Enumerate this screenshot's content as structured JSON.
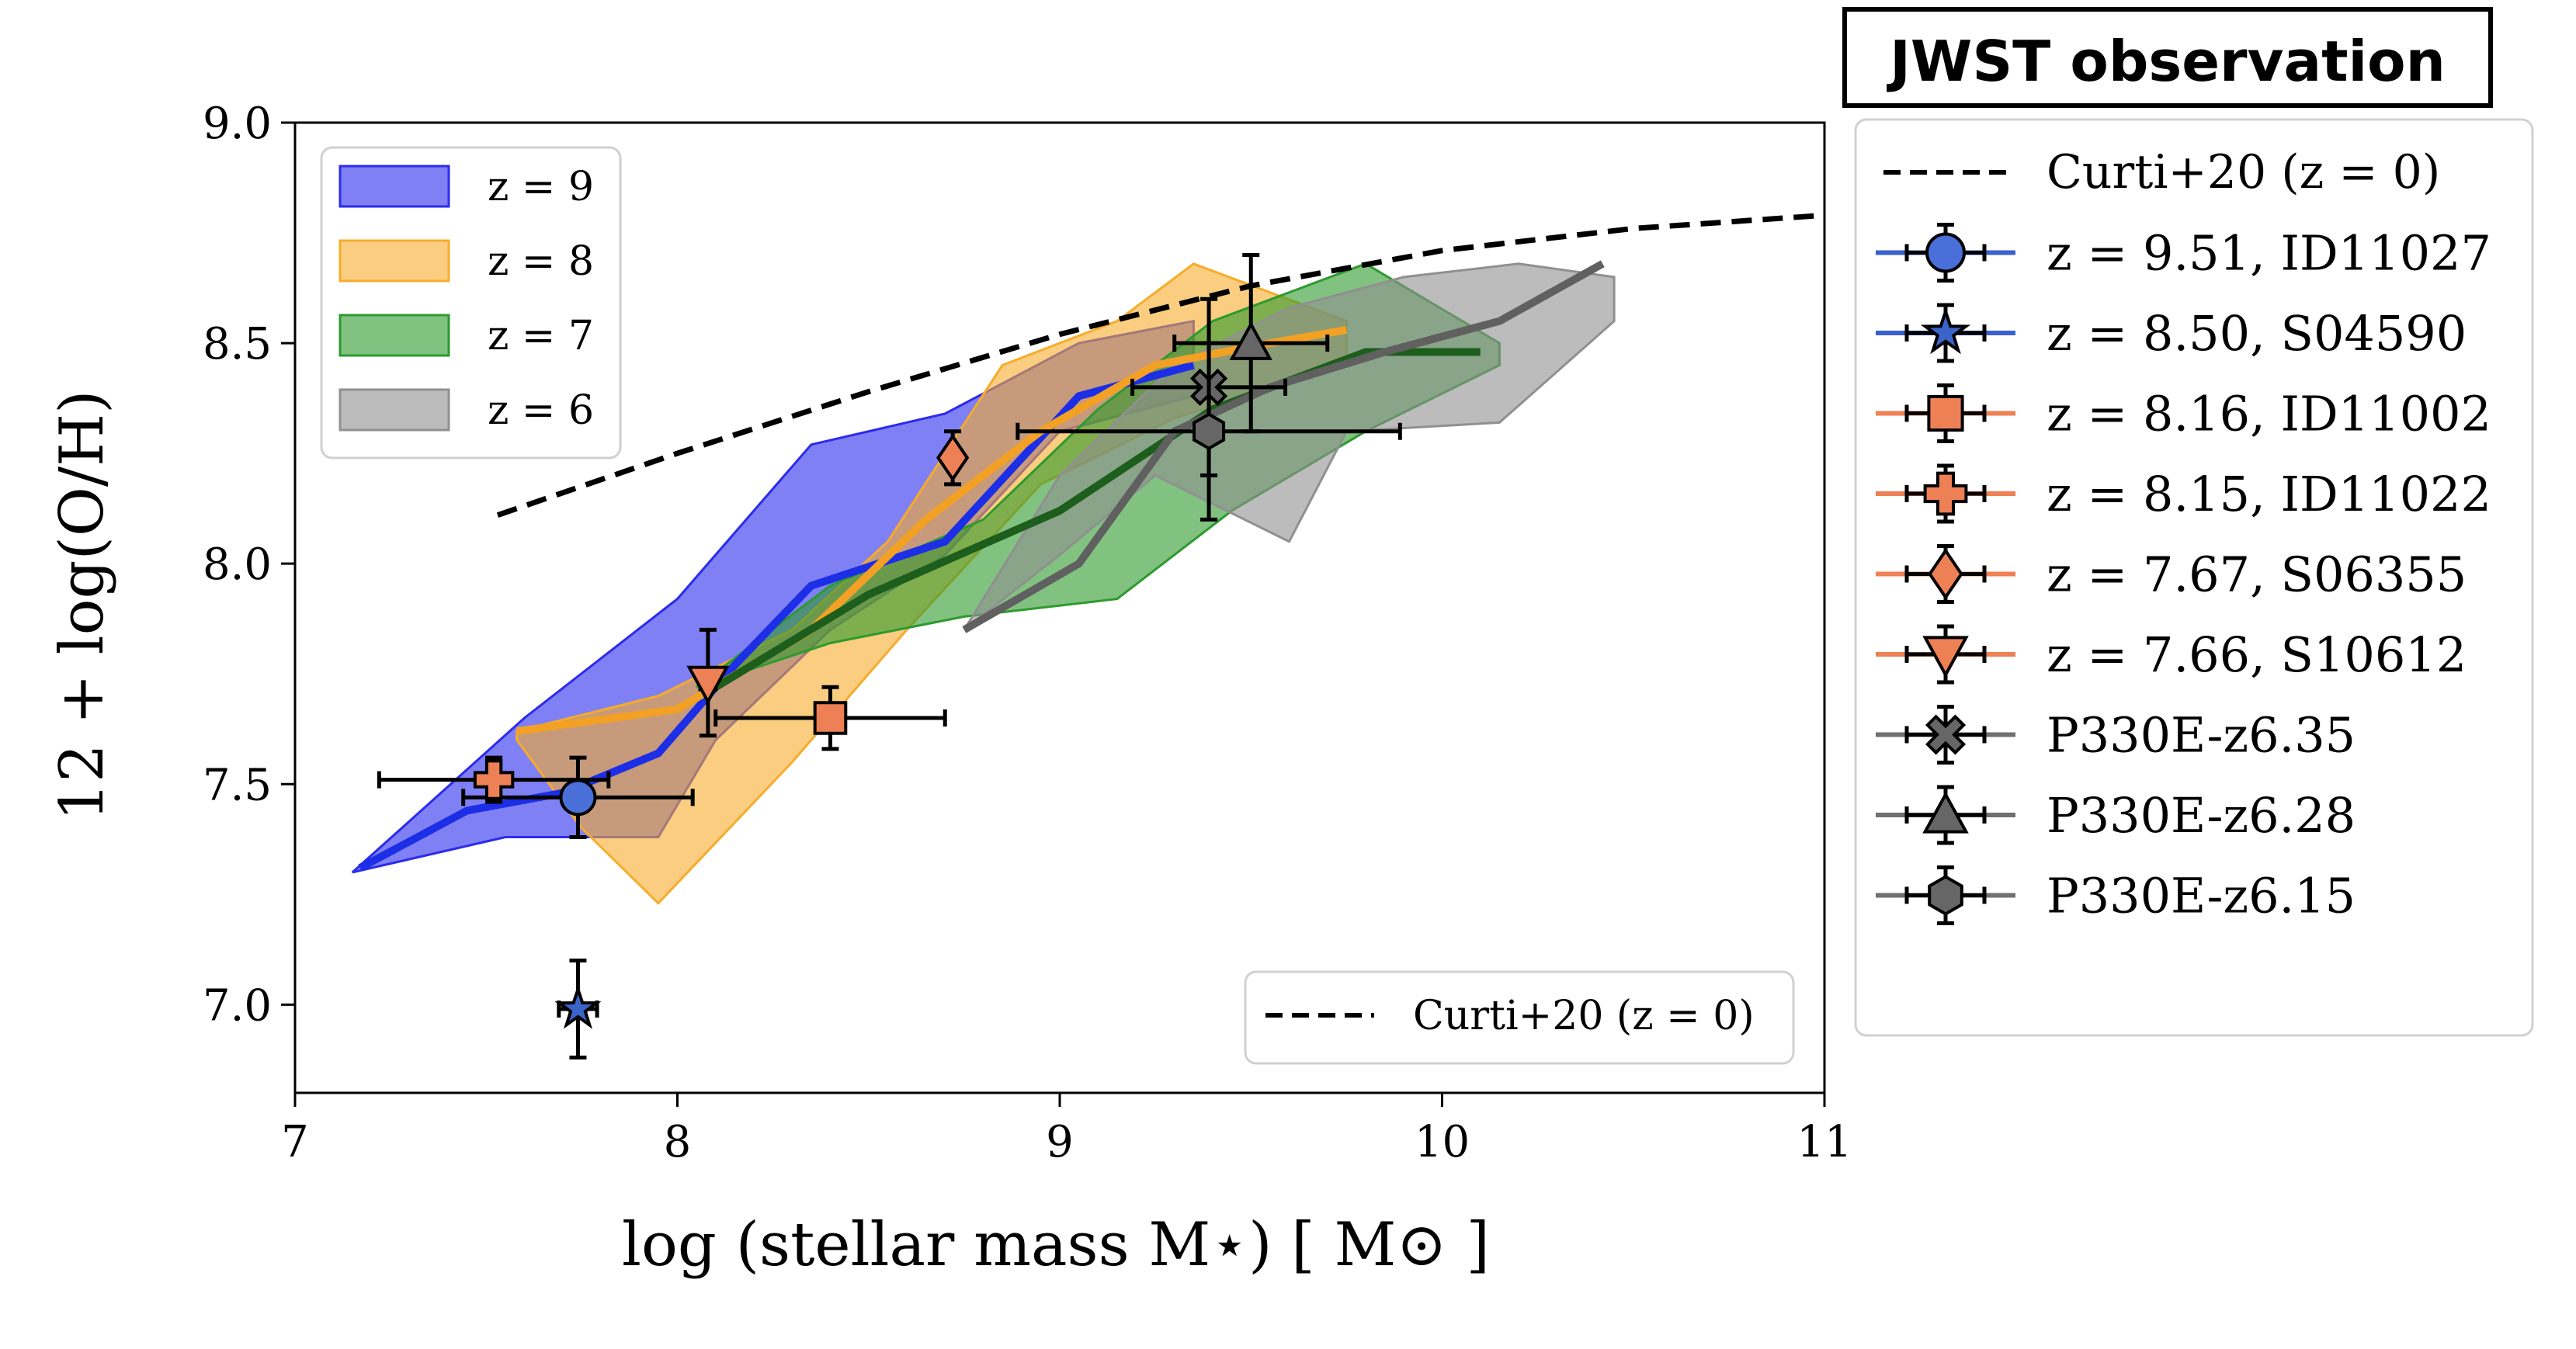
{
  "chart_data": {
    "type": "line",
    "title": "",
    "xlabel": "log (stellar mass M⋆) [ M⊙ ]",
    "ylabel": "12 + log(O/H)",
    "xlim": [
      7,
      11
    ],
    "ylim": [
      6.8,
      9.0
    ],
    "xticks": [
      {
        "value": 7,
        "label": "7"
      },
      {
        "value": 8,
        "label": "8"
      },
      {
        "value": 9,
        "label": "9"
      },
      {
        "value": 10,
        "label": "10"
      },
      {
        "value": 11,
        "label": "11"
      }
    ],
    "yticks": [
      {
        "value": 7.0,
        "label": "7.0"
      },
      {
        "value": 7.5,
        "label": "7.5"
      },
      {
        "value": 8.0,
        "label": "8.0"
      },
      {
        "value": 8.5,
        "label": "8.5"
      },
      {
        "value": 9.0,
        "label": "9.0"
      }
    ],
    "grid": false,
    "bands": [
      {
        "name": "z = 9",
        "color": "#2b2bee",
        "line_color": "#1c2fe6",
        "upper": [
          [
            7.15,
            7.3
          ],
          [
            7.6,
            7.65
          ],
          [
            8.0,
            7.92
          ],
          [
            8.35,
            8.27
          ],
          [
            8.7,
            8.34
          ],
          [
            9.05,
            8.5
          ],
          [
            9.35,
            8.55
          ]
        ],
        "lower": [
          [
            9.35,
            8.38
          ],
          [
            9.0,
            8.3
          ],
          [
            8.7,
            8.02
          ],
          [
            8.4,
            7.85
          ],
          [
            8.1,
            7.6
          ],
          [
            7.95,
            7.38
          ],
          [
            7.55,
            7.38
          ],
          [
            7.15,
            7.3
          ]
        ],
        "median": [
          [
            7.17,
            7.31
          ],
          [
            7.45,
            7.44
          ],
          [
            7.7,
            7.48
          ],
          [
            7.95,
            7.57
          ],
          [
            8.15,
            7.77
          ],
          [
            8.35,
            7.95
          ],
          [
            8.7,
            8.05
          ],
          [
            9.05,
            8.38
          ],
          [
            9.35,
            8.45
          ]
        ]
      },
      {
        "name": "z = 8",
        "color": "#f6ac2c",
        "line_color": "#f3a124",
        "upper": [
          [
            7.58,
            7.62
          ],
          [
            7.95,
            7.7
          ],
          [
            8.3,
            7.85
          ],
          [
            8.55,
            8.05
          ],
          [
            8.85,
            8.45
          ],
          [
            9.15,
            8.55
          ],
          [
            9.35,
            8.68
          ],
          [
            9.75,
            8.55
          ]
        ],
        "lower": [
          [
            9.75,
            8.45
          ],
          [
            9.3,
            8.33
          ],
          [
            8.95,
            8.18
          ],
          [
            8.6,
            7.85
          ],
          [
            8.3,
            7.55
          ],
          [
            7.95,
            7.23
          ],
          [
            7.75,
            7.4
          ],
          [
            7.58,
            7.6
          ]
        ],
        "median": [
          [
            7.58,
            7.62
          ],
          [
            8.0,
            7.67
          ],
          [
            8.35,
            7.85
          ],
          [
            8.65,
            8.1
          ],
          [
            8.95,
            8.3
          ],
          [
            9.25,
            8.45
          ],
          [
            9.55,
            8.5
          ],
          [
            9.75,
            8.53
          ]
        ]
      },
      {
        "name": "z = 7",
        "color": "#2d9a2d",
        "line_color": "#1d5e1d",
        "upper": [
          [
            8.05,
            7.72
          ],
          [
            8.4,
            7.95
          ],
          [
            8.8,
            8.1
          ],
          [
            9.1,
            8.35
          ],
          [
            9.4,
            8.55
          ],
          [
            9.8,
            8.68
          ],
          [
            10.15,
            8.5
          ]
        ],
        "lower": [
          [
            10.15,
            8.45
          ],
          [
            9.8,
            8.3
          ],
          [
            9.45,
            8.12
          ],
          [
            9.15,
            7.92
          ],
          [
            8.75,
            7.88
          ],
          [
            8.4,
            7.82
          ],
          [
            8.05,
            7.72
          ]
        ],
        "median": [
          [
            8.1,
            7.72
          ],
          [
            8.5,
            7.93
          ],
          [
            9.0,
            8.12
          ],
          [
            9.4,
            8.35
          ],
          [
            9.8,
            8.48
          ],
          [
            10.1,
            8.48
          ]
        ]
      },
      {
        "name": "z = 6",
        "color": "#909090",
        "line_color": "#606060",
        "upper": [
          [
            8.75,
            7.85
          ],
          [
            9.0,
            8.2
          ],
          [
            9.3,
            8.45
          ],
          [
            9.6,
            8.58
          ],
          [
            9.9,
            8.65
          ],
          [
            10.2,
            8.68
          ],
          [
            10.45,
            8.65
          ]
        ],
        "lower": [
          [
            10.45,
            8.55
          ],
          [
            10.15,
            8.32
          ],
          [
            9.75,
            8.3
          ],
          [
            9.6,
            8.05
          ],
          [
            9.25,
            8.2
          ],
          [
            9.0,
            8.02
          ],
          [
            8.75,
            7.85
          ]
        ],
        "median": [
          [
            8.75,
            7.85
          ],
          [
            9.05,
            8.0
          ],
          [
            9.3,
            8.3
          ],
          [
            9.55,
            8.4
          ],
          [
            9.85,
            8.48
          ],
          [
            10.15,
            8.55
          ],
          [
            10.42,
            8.68
          ]
        ]
      }
    ],
    "reference_curve": {
      "name": "Curti+20 (z = 0)",
      "color": "#000000",
      "points": [
        [
          7.53,
          8.11
        ],
        [
          8.0,
          8.25
        ],
        [
          8.5,
          8.39
        ],
        [
          9.0,
          8.52
        ],
        [
          9.5,
          8.63
        ],
        [
          10.0,
          8.71
        ],
        [
          10.5,
          8.76
        ],
        [
          11.0,
          8.79
        ]
      ]
    },
    "observations": [
      {
        "name": "z = 9.51, ID11027",
        "marker": "circle",
        "color": "#4a6fd8",
        "line": "#3a5fd0",
        "x": 7.74,
        "y": 7.47,
        "xerr": [
          0.3,
          0.3
        ],
        "yerr": [
          0.09,
          0.09
        ]
      },
      {
        "name": "z = 8.50, S04590",
        "marker": "star",
        "color": "#3a64c8",
        "line": "#3a5fd0",
        "x": 7.74,
        "y": 6.99,
        "xerr": [
          0.05,
          0.05
        ],
        "yerr": [
          0.11,
          0.11
        ]
      },
      {
        "name": "z = 8.16, ID11002",
        "marker": "square",
        "color": "#ee8055",
        "line": "#ee8055",
        "x": 8.4,
        "y": 7.65,
        "xerr": [
          0.3,
          0.3
        ],
        "yerr": [
          0.07,
          0.07
        ]
      },
      {
        "name": "z = 8.15, ID11022",
        "marker": "plus",
        "color": "#ee8055",
        "line": "#ee8055",
        "x": 7.52,
        "y": 7.51,
        "xerr": [
          0.3,
          0.3
        ],
        "yerr": [
          0.05,
          0.05
        ]
      },
      {
        "name": "z = 7.67, S06355",
        "marker": "diamond",
        "color": "#ee8055",
        "line": "#ee8055",
        "x": 8.72,
        "y": 8.24,
        "xerr": [
          0.02,
          0.02
        ],
        "yerr": [
          0.06,
          0.06
        ]
      },
      {
        "name": "z = 7.66, S10612",
        "marker": "triangle-down",
        "color": "#ee8055",
        "line": "#ee8055",
        "x": 8.08,
        "y": 7.73,
        "xerr": [
          0.02,
          0.02
        ],
        "yerr": [
          0.12,
          0.12
        ]
      },
      {
        "name": "P330E-z6.35",
        "marker": "x",
        "color": "#666666",
        "line": "#707070",
        "x": 9.39,
        "y": 8.4,
        "xerr": [
          0.2,
          0.2
        ],
        "yerr": [
          0.2,
          0.2
        ]
      },
      {
        "name": "P330E-z6.28",
        "marker": "triangle-up",
        "color": "#666666",
        "line": "#707070",
        "x": 9.5,
        "y": 8.5,
        "xerr": [
          0.2,
          0.2
        ],
        "yerr": [
          0.2,
          0.2
        ]
      },
      {
        "name": "P330E-z6.15",
        "marker": "hexagon",
        "color": "#666666",
        "line": "#707070",
        "x": 9.39,
        "y": 8.3,
        "xerr": [
          0.5,
          0.5
        ],
        "yerr": [
          0.2,
          0.2
        ]
      }
    ],
    "legends": {
      "simulation": {
        "placement": "upper-left",
        "entries": [
          "z = 9",
          "z = 8",
          "z = 7",
          "z = 6"
        ]
      },
      "curve": {
        "placement": "lower-right",
        "entry": "Curti+20 (z = 0)"
      },
      "observation": {
        "placement": "outside-right",
        "title": "JWST observation"
      }
    }
  }
}
